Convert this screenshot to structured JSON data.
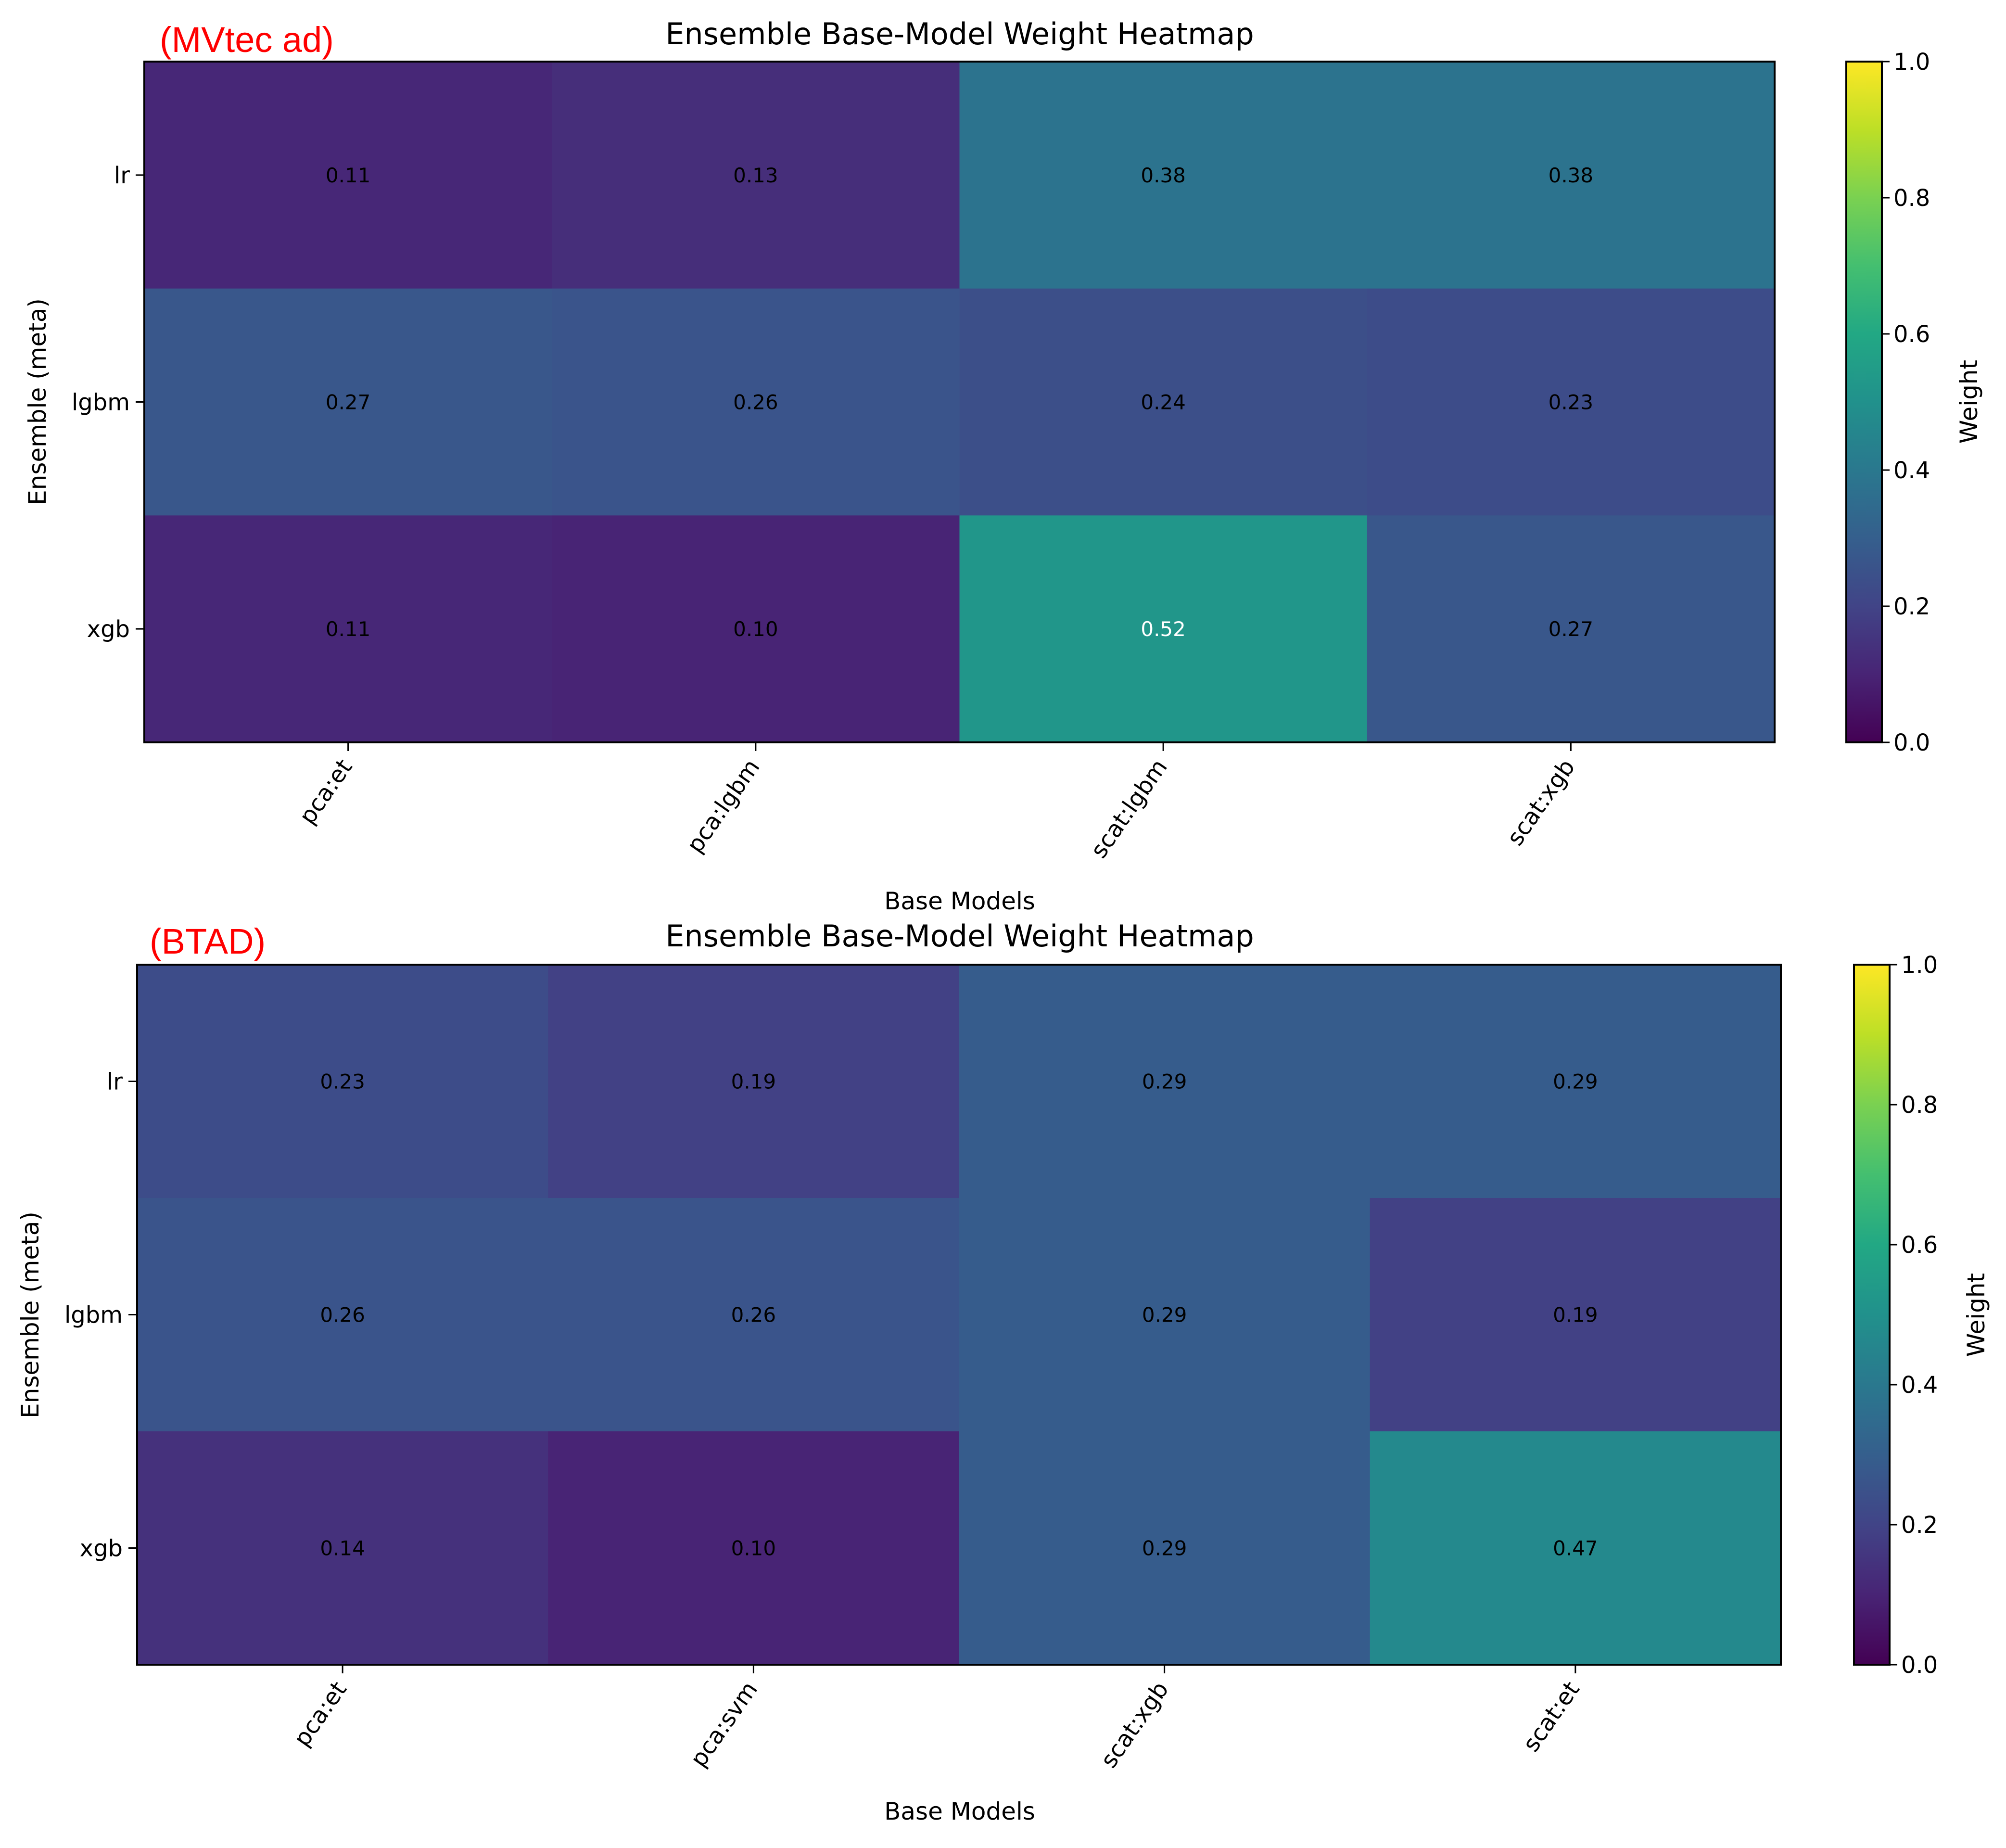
{
  "chart_data": [
    {
      "type": "heatmap",
      "tag": "(MVtec ad)",
      "title": "Ensemble Base-Model Weight Heatmap",
      "xlabel": "Base Models",
      "ylabel": "Ensemble (meta)",
      "x_categories": [
        "pca:et",
        "pca:lgbm",
        "scat:lgbm",
        "scat:xgb"
      ],
      "y_categories": [
        "lr",
        "lgbm",
        "xgb"
      ],
      "values": [
        [
          0.11,
          0.13,
          0.38,
          0.38
        ],
        [
          0.27,
          0.26,
          0.24,
          0.23
        ],
        [
          0.11,
          0.1,
          0.52,
          0.27
        ]
      ],
      "value_labels": [
        [
          "0.11",
          "0.13",
          "0.38",
          "0.38"
        ],
        [
          "0.27",
          "0.26",
          "0.24",
          "0.23"
        ],
        [
          "0.11",
          "0.10",
          "0.52",
          "0.27"
        ]
      ],
      "colorbar": {
        "label": "Weight",
        "range": [
          0,
          1
        ],
        "ticks": [
          "0.0",
          "0.2",
          "0.4",
          "0.6",
          "0.8",
          "1.0"
        ],
        "colormap": "viridis"
      }
    },
    {
      "type": "heatmap",
      "tag": "(BTAD)",
      "title": "Ensemble Base-Model Weight Heatmap",
      "xlabel": "Base Models",
      "ylabel": "Ensemble (meta)",
      "x_categories": [
        "pca:et",
        "pca:svm",
        "scat:xgb",
        "scat:et"
      ],
      "y_categories": [
        "lr",
        "lgbm",
        "xgb"
      ],
      "values": [
        [
          0.23,
          0.19,
          0.29,
          0.29
        ],
        [
          0.26,
          0.26,
          0.29,
          0.19
        ],
        [
          0.14,
          0.1,
          0.29,
          0.47
        ]
      ],
      "value_labels": [
        [
          "0.23",
          "0.19",
          "0.29",
          "0.29"
        ],
        [
          "0.26",
          "0.26",
          "0.29",
          "0.19"
        ],
        [
          "0.14",
          "0.10",
          "0.29",
          "0.47"
        ]
      ],
      "colorbar": {
        "label": "Weight",
        "range": [
          0,
          1
        ],
        "ticks": [
          "0.0",
          "0.2",
          "0.4",
          "0.6",
          "0.8",
          "1.0"
        ],
        "colormap": "viridis"
      }
    }
  ]
}
